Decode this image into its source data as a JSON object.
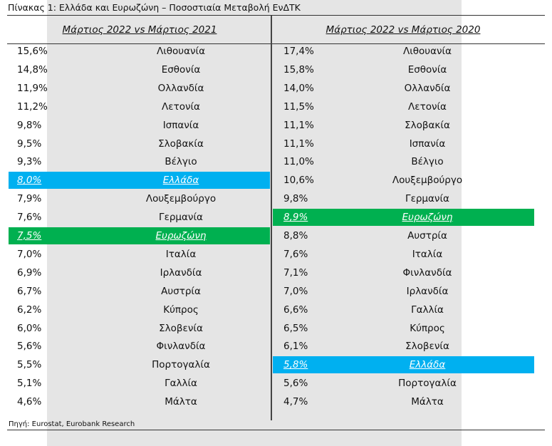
{
  "caption": "Πίνακας 1: Ελλάδα και Ευρωζώνη – Ποσοστιαία Μεταβολή ΕνΔΤΚ",
  "columns": {
    "left_header": "Μάρτιος 2022 vs Μάρτιος 2021",
    "right_header": "Μάρτιος 2022 vs Μάρτιος 2020"
  },
  "highlight_colors": {
    "greece": "#00b0f0",
    "eurozone": "#00b050"
  },
  "left_rows": [
    {
      "value": "15,6%",
      "country": "Λιθουανία",
      "highlight": ""
    },
    {
      "value": "14,8%",
      "country": "Εσθονία",
      "highlight": ""
    },
    {
      "value": "11,9%",
      "country": "Ολλανδία",
      "highlight": ""
    },
    {
      "value": "11,2%",
      "country": "Λετονία",
      "highlight": ""
    },
    {
      "value": "9,8%",
      "country": "Ισπανία",
      "highlight": ""
    },
    {
      "value": "9,5%",
      "country": "Σλοβακία",
      "highlight": ""
    },
    {
      "value": "9,3%",
      "country": "Βέλγιο",
      "highlight": ""
    },
    {
      "value": "8,0%",
      "country": "Ελλάδα",
      "highlight": "greece"
    },
    {
      "value": "7,9%",
      "country": "Λουξεμβούργο",
      "highlight": ""
    },
    {
      "value": "7,6%",
      "country": "Γερμανία",
      "highlight": ""
    },
    {
      "value": "7,5%",
      "country": "Ευρωζώνη",
      "highlight": "eurozone"
    },
    {
      "value": "7,0%",
      "country": "Ιταλία",
      "highlight": ""
    },
    {
      "value": "6,9%",
      "country": "Ιρλανδία",
      "highlight": ""
    },
    {
      "value": "6,7%",
      "country": "Αυστρία",
      "highlight": ""
    },
    {
      "value": "6,2%",
      "country": "Κύπρος",
      "highlight": ""
    },
    {
      "value": "6,0%",
      "country": "Σλοβενία",
      "highlight": ""
    },
    {
      "value": "5,6%",
      "country": "Φινλανδία",
      "highlight": ""
    },
    {
      "value": "5,5%",
      "country": "Πορτογαλία",
      "highlight": ""
    },
    {
      "value": "5,1%",
      "country": "Γαλλία",
      "highlight": ""
    },
    {
      "value": "4,6%",
      "country": "Μάλτα",
      "highlight": ""
    }
  ],
  "right_rows": [
    {
      "value": "17,4%",
      "country": "Λιθουανία",
      "highlight": ""
    },
    {
      "value": "15,8%",
      "country": "Εσθονία",
      "highlight": ""
    },
    {
      "value": "14,0%",
      "country": "Ολλανδία",
      "highlight": ""
    },
    {
      "value": "11,5%",
      "country": "Λετονία",
      "highlight": ""
    },
    {
      "value": "11,1%",
      "country": "Σλοβακία",
      "highlight": ""
    },
    {
      "value": "11,1%",
      "country": "Ισπανία",
      "highlight": ""
    },
    {
      "value": "11,0%",
      "country": "Βέλγιο",
      "highlight": ""
    },
    {
      "value": "10,6%",
      "country": "Λουξεμβούργο",
      "highlight": ""
    },
    {
      "value": "9,8%",
      "country": "Γερμανία",
      "highlight": ""
    },
    {
      "value": "8,9%",
      "country": "Ευρωζώνη",
      "highlight": "eurozone"
    },
    {
      "value": "8,8%",
      "country": "Αυστρία",
      "highlight": ""
    },
    {
      "value": "7,6%",
      "country": "Ιταλία",
      "highlight": ""
    },
    {
      "value": "7,1%",
      "country": "Φινλανδία",
      "highlight": ""
    },
    {
      "value": "7,0%",
      "country": "Ιρλανδία",
      "highlight": ""
    },
    {
      "value": "6,6%",
      "country": "Γαλλία",
      "highlight": ""
    },
    {
      "value": "6,5%",
      "country": "Κύπρος",
      "highlight": ""
    },
    {
      "value": "6,1%",
      "country": "Σλοβενία",
      "highlight": ""
    },
    {
      "value": "5,8%",
      "country": "Ελλάδα",
      "highlight": "greece"
    },
    {
      "value": "5,6%",
      "country": "Πορτογαλία",
      "highlight": ""
    },
    {
      "value": "4,7%",
      "country": "Μάλτα",
      "highlight": ""
    }
  ],
  "source": "Πηγή: Eurostat, Eurobank Research"
}
